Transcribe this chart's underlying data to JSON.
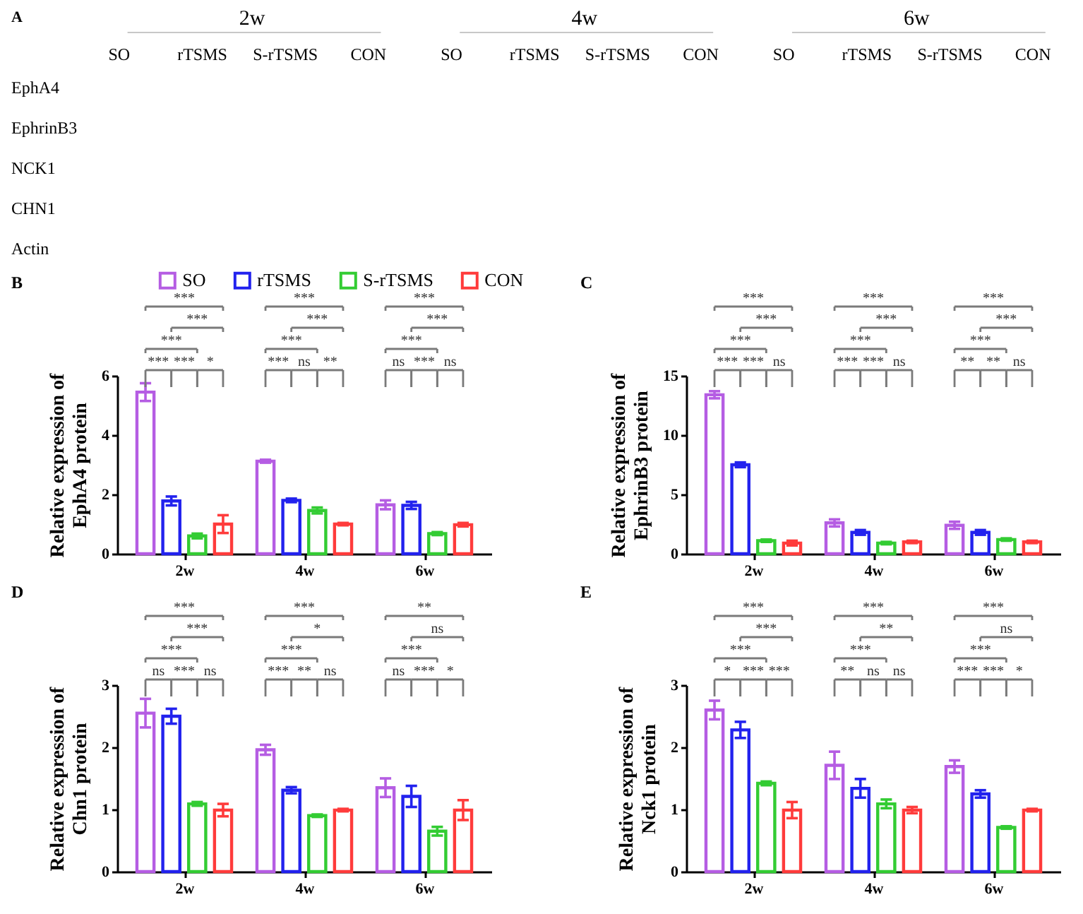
{
  "chart_data": [
    {
      "type": "other",
      "title": "A",
      "categories": [
        "SO",
        "rTSMS",
        "S-rTSMS",
        "CON",
        "SO",
        "rTSMS",
        "S-rTSMS",
        "CON",
        "SO",
        "rTSMS",
        "S-rTSMS",
        "CON"
      ],
      "y_categories": [
        "EphA4",
        "EphrinB3",
        "NCK1",
        "CHN1",
        "Actin"
      ],
      "annotations": [
        "2w",
        "4w",
        "6w"
      ]
    },
    {
      "type": "bar",
      "title": "B",
      "ylabel": "Relative expression of\nEphA4 protein",
      "categories": [
        "2w",
        "4w",
        "6w"
      ],
      "legend": "top",
      "series": [
        {
          "name": "SO",
          "color": "#b55de3",
          "values": [
            5.45,
            3.12,
            1.65
          ],
          "errors": [
            0.3,
            0.05,
            0.15
          ]
        },
        {
          "name": "rTSMS",
          "color": "#2222ee",
          "values": [
            1.78,
            1.8,
            1.63
          ],
          "errors": [
            0.15,
            0.06,
            0.12
          ]
        },
        {
          "name": "S-rTSMS",
          "color": "#33cc33",
          "values": [
            0.6,
            1.46,
            0.68
          ],
          "errors": [
            0.08,
            0.1,
            0.05
          ]
        },
        {
          "name": "CON",
          "color": "#ff3b3b",
          "values": [
            1.0,
            1.0,
            0.98
          ],
          "errors": [
            0.3,
            0.04,
            0.06
          ]
        }
      ],
      "ylim": [
        0,
        6
      ],
      "yticks": [
        0,
        2,
        4,
        6
      ],
      "annotations": [
        "***",
        "***",
        "*",
        "***",
        "***",
        "***",
        "***",
        "ns",
        "**",
        "***",
        "***",
        "***",
        "ns",
        "***",
        "ns",
        "***",
        "***",
        "***"
      ]
    },
    {
      "type": "bar",
      "title": "C",
      "ylabel": "Relative expression of\nEphrinB3 protein",
      "categories": [
        "2w",
        "4w",
        "6w"
      ],
      "series": [
        {
          "color": "#b55de3",
          "values": [
            13.4,
            2.6,
            2.4
          ],
          "errors": [
            0.3,
            0.3,
            0.3
          ]
        },
        {
          "color": "#2222ee",
          "values": [
            7.5,
            1.8,
            1.8
          ],
          "errors": [
            0.2,
            0.2,
            0.2
          ]
        },
        {
          "color": "#33cc33",
          "values": [
            1.1,
            0.9,
            1.2
          ],
          "errors": [
            0.1,
            0.1,
            0.1
          ]
        },
        {
          "color": "#ff3b3b",
          "values": [
            0.9,
            1.0,
            1.0
          ],
          "errors": [
            0.2,
            0.1,
            0.1
          ]
        }
      ],
      "ylim": [
        0,
        15
      ],
      "yticks": [
        0,
        5,
        10,
        15
      ],
      "annotations": [
        "***",
        "***",
        "ns",
        "***",
        "***",
        "***",
        "***",
        "***",
        "ns",
        "***",
        "***",
        "***",
        "**",
        "**",
        "ns",
        "***",
        "***",
        "***"
      ]
    },
    {
      "type": "bar",
      "title": "D",
      "ylabel": "Relative expression of\nChn1 protein",
      "categories": [
        "2w",
        "4w",
        "6w"
      ],
      "series": [
        {
          "color": "#b55de3",
          "values": [
            2.55,
            1.96,
            1.35
          ],
          "errors": [
            0.23,
            0.08,
            0.15
          ]
        },
        {
          "color": "#2222ee",
          "values": [
            2.5,
            1.31,
            1.21
          ],
          "errors": [
            0.12,
            0.05,
            0.17
          ]
        },
        {
          "color": "#33cc33",
          "values": [
            1.09,
            0.9,
            0.65
          ],
          "errors": [
            0.03,
            0.02,
            0.07
          ]
        },
        {
          "color": "#ff3b3b",
          "values": [
            0.99,
            0.99,
            0.99
          ],
          "errors": [
            0.1,
            0.02,
            0.16
          ]
        }
      ],
      "ylim": [
        0,
        3
      ],
      "yticks": [
        0,
        1,
        2,
        3
      ],
      "annotations": [
        "ns",
        "***",
        "ns",
        "***",
        "***",
        "***",
        "***",
        "**",
        "ns",
        "***",
        "*",
        "***",
        "ns",
        "***",
        "*",
        "***",
        "ns",
        "**"
      ]
    },
    {
      "type": "bar",
      "title": "E",
      "ylabel": "Relative expression of\nNck1 protein",
      "categories": [
        "2w",
        "4w",
        "6w"
      ],
      "series": [
        {
          "color": "#b55de3",
          "values": [
            2.6,
            1.71,
            1.69
          ],
          "errors": [
            0.15,
            0.22,
            0.1
          ]
        },
        {
          "color": "#2222ee",
          "values": [
            2.28,
            1.34,
            1.25
          ],
          "errors": [
            0.13,
            0.15,
            0.06
          ]
        },
        {
          "color": "#33cc33",
          "values": [
            1.42,
            1.09,
            0.71
          ],
          "errors": [
            0.03,
            0.07,
            0.02
          ]
        },
        {
          "color": "#ff3b3b",
          "values": [
            0.99,
            0.99,
            0.99
          ],
          "errors": [
            0.13,
            0.05,
            0.02
          ]
        }
      ],
      "ylim": [
        0,
        3
      ],
      "yticks": [
        0,
        1,
        2,
        3
      ],
      "annotations": [
        "*",
        "***",
        "***",
        "***",
        "***",
        "***",
        "**",
        "ns",
        "ns",
        "***",
        "**",
        "***",
        "***",
        "***",
        "*",
        "***",
        "ns",
        "***"
      ]
    }
  ]
}
